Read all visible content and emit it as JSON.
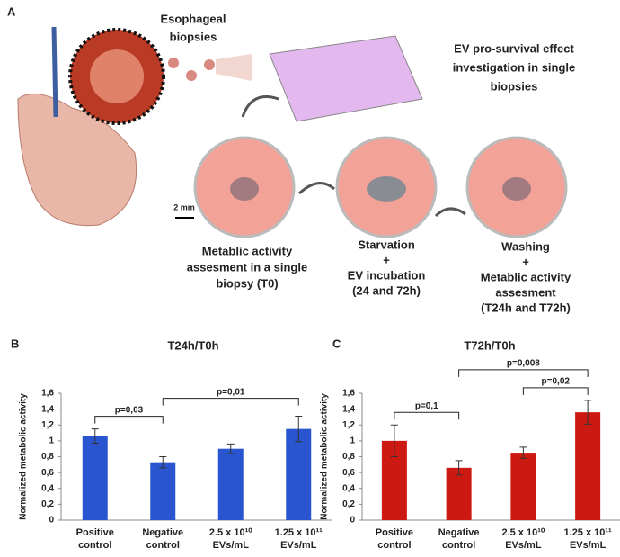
{
  "panel_a": {
    "label": "A",
    "biopsies": [
      "Esophageal",
      "biopsies"
    ],
    "investigation": [
      "EV pro-survival effect",
      "investigation in single",
      "biopsies"
    ],
    "scale": "2 mm",
    "step1": [
      "Metablic activity",
      "assesment in a single",
      "biopsy (T0)"
    ],
    "step2": [
      "Starvation",
      "+",
      "EV incubation",
      "(24 and 72h)"
    ],
    "step3": [
      "Washing",
      "+",
      "Metablic activity",
      "assesment",
      "(T24h and T72h)"
    ]
  },
  "chart_data": [
    {
      "type": "bar",
      "panel": "B",
      "title": "T24h/T0h",
      "y_label": "Normalized metabolic activity",
      "categories": [
        "Positive control",
        "Negative control",
        "2.5 x 10¹⁰ EVs/mL",
        "1.25 x 10¹¹ EVs/mL"
      ],
      "values": [
        1.06,
        0.73,
        0.9,
        1.15
      ],
      "errors": [
        0.09,
        0.07,
        0.06,
        0.16
      ],
      "color": "#2a55d0",
      "ylim": [
        0,
        1.6
      ],
      "yticks": [
        0,
        {
          "value": 0.2,
          "label": "0,2"
        },
        {
          "value": 0.4,
          "label": "0,4"
        },
        {
          "value": 0.6,
          "label": "0,6"
        },
        {
          "value": 0.8,
          "label": "0,8"
        },
        1,
        {
          "value": 1.2,
          "label": "1,2"
        },
        {
          "value": 1.4,
          "label": "1,4"
        },
        {
          "value": 1.6,
          "label": "1,6"
        }
      ],
      "annotations": [
        {
          "text": "p=0,03",
          "from": 0,
          "to": 1
        },
        {
          "text": "p=0,01",
          "from": 1,
          "to": 3
        }
      ]
    },
    {
      "type": "bar",
      "panel": "C",
      "title": "T72h/T0h",
      "y_label": "Normalized metabolic activity",
      "categories": [
        "Positive control",
        "Negative control",
        "2.5 x 10¹⁰ EVs/mL",
        "1.25 x 10¹¹ EVs/mL"
      ],
      "values": [
        1.0,
        0.66,
        0.85,
        1.36
      ],
      "errors": [
        0.2,
        0.09,
        0.07,
        0.15
      ],
      "color": "#cc1a12",
      "ylim": [
        0,
        1.6
      ],
      "yticks": [
        0,
        {
          "value": 0.2,
          "label": "0,2"
        },
        {
          "value": 0.4,
          "label": "0,4"
        },
        {
          "value": 0.6,
          "label": "0,6"
        },
        {
          "value": 0.8,
          "label": "0,8"
        },
        1,
        {
          "value": 1.2,
          "label": "1,2"
        },
        {
          "value": 1.4,
          "label": "1,4"
        },
        {
          "value": 1.6,
          "label": "1,6"
        }
      ],
      "annotations": [
        {
          "text": "p=0,1",
          "from": 0,
          "to": 1
        },
        {
          "text": "p=0,02",
          "from": 2,
          "to": 3
        },
        {
          "text": "p=0,008",
          "from": 1,
          "to": 3
        }
      ]
    }
  ]
}
